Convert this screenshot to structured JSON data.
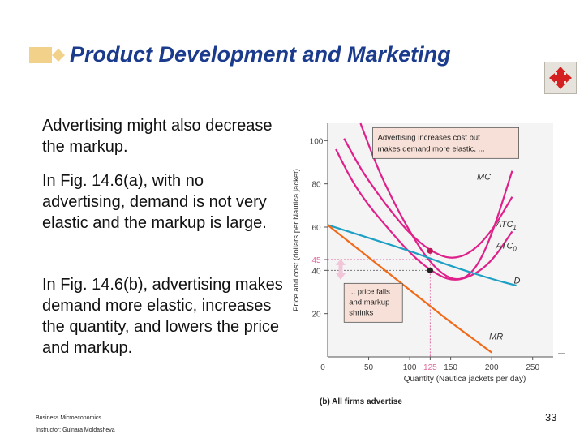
{
  "slide": {
    "title": "Product Development and Marketing",
    "paragraphs": [
      "Advertising might also decrease the markup.",
      "In Fig. 14.6(a), with no advertising, demand is not very elastic and the markup is large.",
      "In Fig. 14.6(b), advertising makes demand more elastic, increases the quantity, and lowers the price and  markup."
    ],
    "footer": {
      "course": "Business Microeconomics",
      "instructor": "Instructor: Gulnara Moldasheva"
    },
    "page_number": "33"
  },
  "colors": {
    "title": "#1b3b8c",
    "mc_curve": "#e0208a",
    "atc_curve": "#e0208a",
    "demand_curve": "#1ea0c4",
    "mr_curve": "#f06a1a",
    "callout_bg": "#f7e0d7",
    "gridline": "#e06aa0"
  },
  "chart_data": {
    "type": "line",
    "title": "(b) All firms advertise",
    "xlabel": "Quantity (Nautica jackets per day)",
    "ylabel": "Price and cost (dollars per Nautica jacket)",
    "xlim": [
      0,
      275
    ],
    "ylim": [
      0,
      108
    ],
    "x_ticks": [
      "0",
      "50",
      "100",
      "125",
      "150",
      "200",
      "250"
    ],
    "y_ticks": [
      "20",
      "40",
      "45",
      "60",
      "80",
      "100"
    ],
    "series": [
      {
        "name": "MC",
        "points": [
          [
            40,
            108
          ],
          [
            60,
            88
          ],
          [
            80,
            72
          ],
          [
            100,
            58
          ],
          [
            120,
            46
          ],
          [
            140,
            38
          ],
          [
            160,
            35
          ],
          [
            180,
            40
          ],
          [
            200,
            56
          ],
          [
            225,
            86
          ]
        ]
      },
      {
        "name": "ATC1",
        "points": [
          [
            20,
            101
          ],
          [
            40,
            87
          ],
          [
            60,
            76
          ],
          [
            80,
            66
          ],
          [
            100,
            57
          ],
          [
            125,
            49
          ],
          [
            150,
            45
          ],
          [
            175,
            48
          ],
          [
            200,
            58
          ],
          [
            225,
            74
          ]
        ]
      },
      {
        "name": "ATC0",
        "points": [
          [
            10,
            96
          ],
          [
            30,
            81
          ],
          [
            50,
            70
          ],
          [
            70,
            61
          ],
          [
            100,
            48
          ],
          [
            125,
            40
          ],
          [
            150,
            35
          ],
          [
            175,
            37
          ],
          [
            200,
            44
          ],
          [
            225,
            58
          ]
        ]
      },
      {
        "name": "D",
        "points": [
          [
            0,
            61
          ],
          [
            50,
            55
          ],
          [
            100,
            49
          ],
          [
            125,
            45.5
          ],
          [
            150,
            42
          ],
          [
            200,
            36
          ],
          [
            230,
            33
          ]
        ]
      },
      {
        "name": "MR",
        "points": [
          [
            0,
            61
          ],
          [
            50,
            46
          ],
          [
            100,
            31
          ],
          [
            125,
            23.5
          ],
          [
            150,
            16
          ],
          [
            200,
            2
          ]
        ]
      }
    ],
    "highlight_points": [
      {
        "x": 125,
        "y": 49
      },
      {
        "x": 125,
        "y": 40
      }
    ],
    "annotations": [
      "Advertising increases cost but makes demand more elastic, ...",
      "... price falls and markup shrinks"
    ]
  }
}
